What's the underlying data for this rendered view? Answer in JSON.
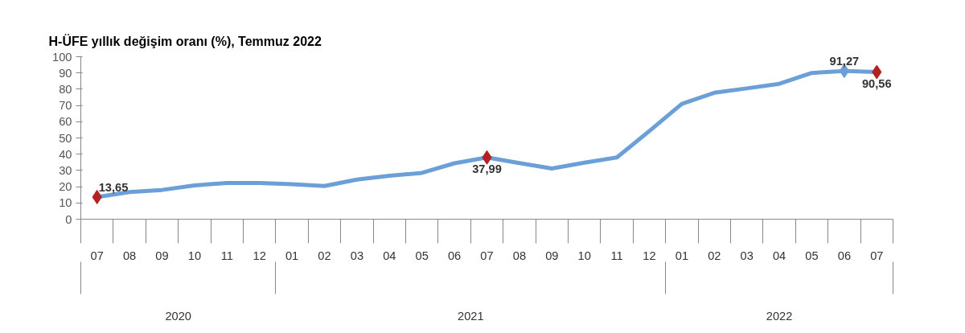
{
  "chart_data": {
    "type": "line",
    "title": "H-ÜFE yıllık değişim oranı (%), Temmuz 2022",
    "categories": [
      "07",
      "08",
      "09",
      "10",
      "11",
      "12",
      "01",
      "02",
      "03",
      "04",
      "05",
      "06",
      "07",
      "08",
      "09",
      "10",
      "11",
      "12",
      "01",
      "02",
      "03",
      "04",
      "05",
      "06",
      "07"
    ],
    "annotations": [
      "2020",
      "2021",
      "2022"
    ],
    "series": [
      {
        "color": "#6a9fd8",
        "values": [
          13.65,
          16.7,
          18,
          20.8,
          22.3,
          22.3,
          21.5,
          20.4,
          24.4,
          26.7,
          28.5,
          34.4,
          37.99,
          34.5,
          31.2,
          34.8,
          38,
          54.3,
          71,
          77.8,
          80.5,
          83.3,
          90,
          91.27,
          90.56
        ]
      },
      {
        "type": "scatter",
        "marker": "diamond",
        "colors": [
          "#b22222",
          null,
          null,
          null,
          null,
          null,
          null,
          null,
          null,
          null,
          null,
          null,
          "#b22222",
          null,
          null,
          null,
          null,
          null,
          null,
          null,
          null,
          null,
          null,
          "#6a9fd8",
          "#b22222"
        ],
        "values": [
          13.65,
          null,
          null,
          null,
          null,
          null,
          null,
          null,
          null,
          null,
          null,
          null,
          37.99,
          null,
          null,
          null,
          null,
          null,
          null,
          null,
          null,
          null,
          null,
          91.27,
          90.56
        ],
        "value_labels": [
          "13,65",
          null,
          null,
          null,
          null,
          null,
          null,
          null,
          null,
          null,
          null,
          null,
          "37,99",
          null,
          null,
          null,
          null,
          null,
          null,
          null,
          null,
          null,
          null,
          "91,27",
          "90,56"
        ]
      }
    ],
    "ylim": [
      0,
      100
    ],
    "yticks": [
      0,
      10,
      20,
      30,
      40,
      50,
      60,
      70,
      80,
      90,
      100
    ],
    "grid": false
  }
}
